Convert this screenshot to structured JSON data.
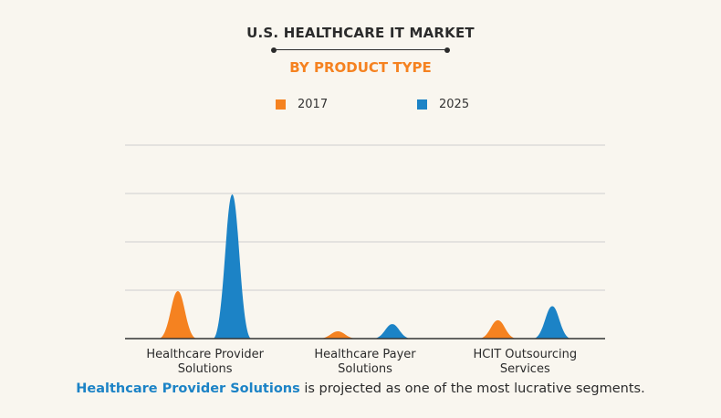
{
  "chart_data": {
    "type": "area",
    "title": "U.S. HEALTHCARE IT MARKET",
    "subtitle": "BY PRODUCT TYPE",
    "xlabel": "",
    "ylabel": "",
    "ylim": [
      0,
      4
    ],
    "grid": true,
    "legend": "top-center",
    "categories": [
      [
        "Healthcare Provider",
        "Solutions"
      ],
      [
        "Healthcare Payer",
        "Solutions"
      ],
      [
        "HCIT Outsourcing",
        "Services"
      ]
    ],
    "series": [
      {
        "name": "2017",
        "color": "#f58220",
        "values": [
          0.98,
          0.15,
          0.38
        ]
      },
      {
        "name": "2025",
        "color": "#1c83c6",
        "values": [
          2.98,
          0.3,
          0.67
        ]
      }
    ]
  },
  "caption": {
    "highlight": "Healthcare Provider Solutions",
    "rest": " is projected as one of the most lucrative segments."
  },
  "colors": {
    "title": "#2b2b2b",
    "subtitle": "#f58220",
    "highlight": "#1c83c6",
    "grid": "#cfcfcf",
    "axis": "#333333"
  }
}
